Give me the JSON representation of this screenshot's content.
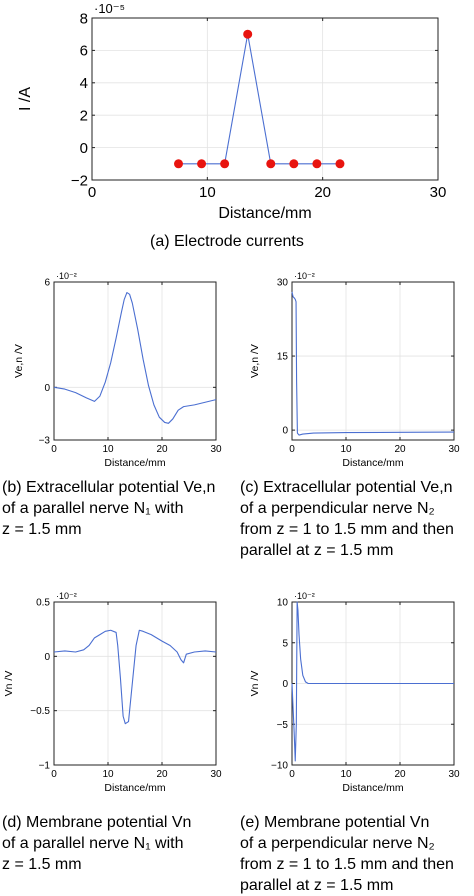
{
  "chart_data": [
    {
      "type": "line",
      "markers": true,
      "ylabel": "I /A",
      "xlabel": "Distance/mm",
      "exponent": "·10⁻⁵",
      "caption": "(a) Electrode currents",
      "xlim": [
        0,
        30
      ],
      "ylim": [
        -2,
        8
      ],
      "xticks": [
        0,
        10,
        20,
        30
      ],
      "yticks": [
        -2,
        0,
        2,
        4,
        6,
        8
      ],
      "xticklabels": [
        "0",
        "10",
        "20",
        "30"
      ],
      "yticklabels": [
        "−2",
        "0",
        "2",
        "4",
        "6",
        "8"
      ],
      "grid": true,
      "series": [
        {
          "color": "#4b6fd1",
          "marker_color": "#e8140f",
          "x": [
            7.5,
            9.5,
            11.5,
            13.5,
            15.5,
            17.5,
            19.5,
            21.5
          ],
          "y": [
            -1,
            -1,
            -1,
            7,
            -1,
            -1,
            -1,
            -1
          ]
        }
      ]
    },
    {
      "type": "line",
      "ylabel": "Ve,n /V",
      "xlabel": "Distance/mm",
      "exponent": "·10⁻²",
      "caption": "(b) Extracellular potential Ve,n\nof a parallel nerve N₁ with\nz = 1.5 mm",
      "xlim": [
        0,
        30
      ],
      "ylim": [
        -3,
        6
      ],
      "xticks": [
        0,
        10,
        20,
        30
      ],
      "yticks": [
        -3,
        0,
        6
      ],
      "xticklabels": [
        "0",
        "10",
        "20",
        "30"
      ],
      "yticklabels": [
        "−3",
        "0",
        "6"
      ],
      "grid": true,
      "series": [
        {
          "color": "#4b6fd1",
          "x": [
            0,
            2,
            4,
            6,
            7.5,
            8.5,
            9.5,
            10.5,
            11.5,
            12.5,
            13,
            13.5,
            14,
            14.5,
            15.5,
            16.5,
            17.5,
            18.5,
            19.5,
            20.5,
            21.2,
            22,
            23,
            24,
            26,
            28,
            30
          ],
          "y": [
            0,
            -0.1,
            -0.3,
            -0.6,
            -0.8,
            -0.5,
            0.3,
            1.4,
            2.8,
            4.3,
            5.0,
            5.4,
            5.3,
            4.8,
            3.3,
            1.6,
            0.1,
            -1.0,
            -1.7,
            -2.0,
            -2.05,
            -1.8,
            -1.3,
            -1.1,
            -1.0,
            -0.85,
            -0.7
          ]
        }
      ]
    },
    {
      "type": "line",
      "ylabel": "Ve,n /V",
      "xlabel": "Distance/mm",
      "exponent": "·10⁻²",
      "caption": "(c) Extracellular potential Ve,n\nof a perpendicular nerve N₂\nfrom z = 1 to 1.5 mm and then\nparallel at z = 1.5 mm",
      "xlim": [
        0,
        30
      ],
      "ylim": [
        -2,
        30
      ],
      "xticks": [
        0,
        10,
        20,
        30
      ],
      "yticks": [
        0,
        15,
        30
      ],
      "xticklabels": [
        "0",
        "10",
        "20",
        "30"
      ],
      "yticklabels": [
        "0",
        "15",
        "30"
      ],
      "grid": true,
      "series": [
        {
          "color": "#4b6fd1",
          "x": [
            0,
            0.2,
            0.4,
            0.6,
            0.75,
            0.85,
            1.0,
            1.3,
            2,
            4,
            10,
            20,
            30
          ],
          "y": [
            28,
            27,
            26.8,
            26.5,
            26,
            10,
            -0.6,
            -1.0,
            -0.8,
            -0.6,
            -0.5,
            -0.45,
            -0.4
          ]
        }
      ]
    },
    {
      "type": "line",
      "ylabel": "Vn /V",
      "xlabel": "Distance/mm",
      "exponent": "·10⁻²",
      "caption": "(d) Membrane potential Vn\nof a parallel nerve N₁ with\nz = 1.5 mm",
      "xlim": [
        0,
        30
      ],
      "ylim": [
        -1,
        0.5
      ],
      "xticks": [
        0,
        10,
        20,
        30
      ],
      "yticks": [
        -1,
        -0.5,
        0,
        0.5
      ],
      "xticklabels": [
        "0",
        "10",
        "20",
        "30"
      ],
      "yticklabels": [
        "−1",
        "−0.5",
        "0",
        "0.5"
      ],
      "grid": true,
      "series": [
        {
          "color": "#4b6fd1",
          "x": [
            0,
            2,
            4,
            5.5,
            6.5,
            7.5,
            8.5,
            9.5,
            10.5,
            11.5,
            11.8,
            12.3,
            12.8,
            13.2,
            13.8,
            14.5,
            15.2,
            15.8,
            16.5,
            18,
            20,
            21.5,
            22.8,
            23.5,
            24,
            24.5,
            26,
            28,
            30
          ],
          "y": [
            0.04,
            0.05,
            0.04,
            0.06,
            0.1,
            0.17,
            0.2,
            0.23,
            0.24,
            0.22,
            0.1,
            -0.2,
            -0.55,
            -0.62,
            -0.6,
            -0.25,
            0.1,
            0.24,
            0.23,
            0.2,
            0.14,
            0.1,
            0.04,
            -0.03,
            -0.06,
            0.02,
            0.04,
            0.05,
            0.04
          ]
        }
      ]
    },
    {
      "type": "line",
      "ylabel": "Vn /V",
      "xlabel": "Distance/mm",
      "exponent": "·10⁻²",
      "caption": "(e) Membrane potential Vn\nof a perpendicular nerve N₂\nfrom z = 1 to 1.5 mm and then\nparallel at z = 1.5 mm",
      "xlim": [
        0,
        30
      ],
      "ylim": [
        -10,
        10
      ],
      "xticks": [
        0,
        10,
        20,
        30
      ],
      "yticks": [
        -10,
        -5,
        0,
        5,
        10
      ],
      "xticklabels": [
        "0",
        "10",
        "20",
        "30"
      ],
      "yticklabels": [
        "−10",
        "−5",
        "0",
        "5",
        "10"
      ],
      "grid": true,
      "series": [
        {
          "color": "#4b6fd1",
          "x": [
            0,
            0.2,
            0.4,
            0.6,
            0.8,
            0.95,
            1.1,
            1.3,
            1.6,
            2.0,
            2.5,
            3,
            5,
            10,
            20,
            30
          ],
          "y": [
            0,
            -3,
            -6,
            -9.5,
            -5,
            10,
            9,
            6,
            3,
            1,
            0.2,
            0,
            0,
            0,
            0,
            0
          ]
        }
      ]
    }
  ]
}
